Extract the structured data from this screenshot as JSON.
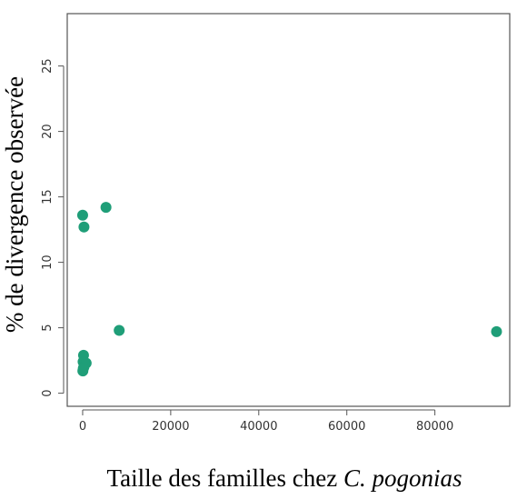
{
  "chart_data": {
    "type": "scatter",
    "title": "",
    "xlabel": "Taille des familles chez ",
    "xlabel_italic": "C. pogonias",
    "ylabel": "% de divergence observée",
    "xlim": [
      -3500,
      97000
    ],
    "ylim": [
      -1,
      29
    ],
    "xticks": [
      0,
      20000,
      40000,
      60000,
      80000
    ],
    "xtick_labels": [
      "0",
      "20000",
      "40000",
      "60000",
      "80000"
    ],
    "yticks": [
      0,
      5,
      10,
      15,
      20,
      25
    ],
    "ytick_labels": [
      "0",
      "5",
      "10",
      "15",
      "20",
      "25"
    ],
    "grid": false,
    "point_color": "#1f9e78",
    "points": [
      {
        "x": 0,
        "y": 13.6
      },
      {
        "x": 300,
        "y": 12.7
      },
      {
        "x": 5300,
        "y": 14.2
      },
      {
        "x": 8300,
        "y": 4.8
      },
      {
        "x": 94000,
        "y": 4.7
      },
      {
        "x": 200,
        "y": 2.9
      },
      {
        "x": 100,
        "y": 2.4
      },
      {
        "x": 800,
        "y": 2.3
      },
      {
        "x": 300,
        "y": 2.0
      },
      {
        "x": 50,
        "y": 1.7
      },
      {
        "x": 150,
        "y": 1.9
      }
    ]
  }
}
